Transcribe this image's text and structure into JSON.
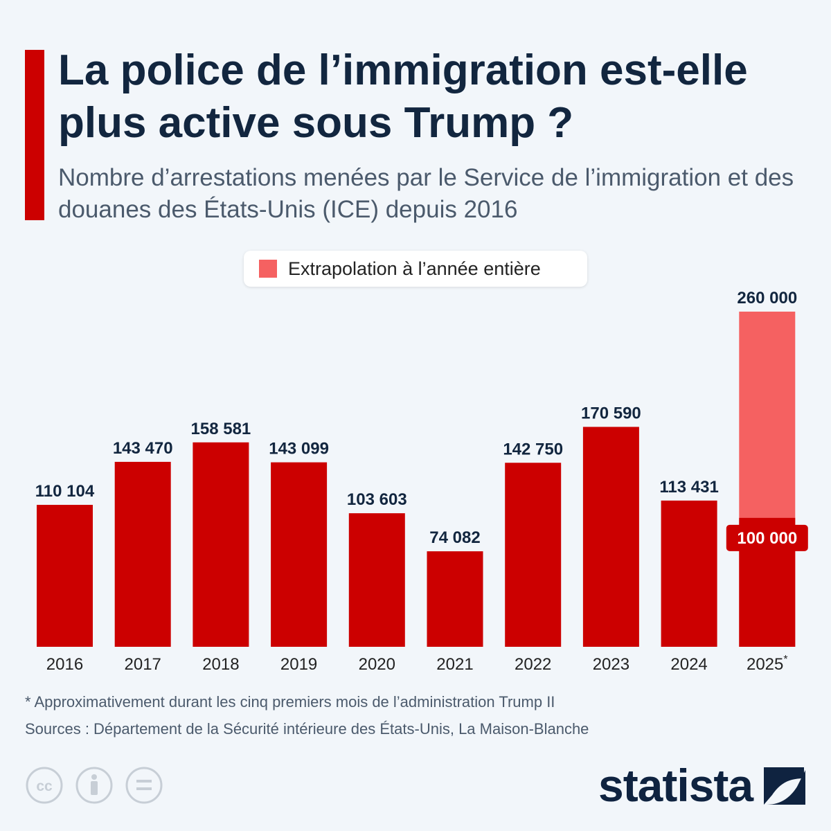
{
  "title": "La police de l’immigration est-elle plus active sous Trump ?",
  "subtitle": "Nombre d’arrestations menées par le Service de l’immigration et des douanes des États-Unis (ICE) depuis 2016",
  "legend": {
    "label": "Extrapolation à l’année entière",
    "color": "#f56161"
  },
  "colors": {
    "bar": "#cc0000",
    "extrapolation": "#f56161",
    "title": "#12263f"
  },
  "chart_data": {
    "type": "bar",
    "categories": [
      "2016",
      "2017",
      "2018",
      "2019",
      "2020",
      "2021",
      "2022",
      "2023",
      "2024",
      "2025"
    ],
    "category_suffixes": [
      "",
      "",
      "",
      "",
      "",
      "",
      "",
      "",
      "",
      "*"
    ],
    "series": [
      {
        "values": [
          110104,
          143470,
          158581,
          143099,
          103603,
          74082,
          142750,
          170590,
          113431,
          100000
        ]
      },
      {
        "name": "Extrapolation à l’année entière",
        "values": [
          null,
          null,
          null,
          null,
          null,
          null,
          null,
          null,
          null,
          260000
        ]
      }
    ],
    "labels": [
      "110 104",
      "143 470",
      "158 581",
      "143 099",
      "103 603",
      "74 082",
      "142 750",
      "170 590",
      "113 431",
      "100 000"
    ],
    "extrapolation_label": "260 000",
    "ylim": [
      0,
      260000
    ],
    "grid": false
  },
  "footnote": "* Approximativement durant les cinq premiers mois de l’administration Trump II",
  "sources": "Sources : Département de la Sécurité intérieure des États-Unis, La Maison-Blanche",
  "logo": {
    "text": "statista"
  },
  "icons": [
    "cc-icon",
    "attribution-icon",
    "no-derivatives-icon"
  ]
}
